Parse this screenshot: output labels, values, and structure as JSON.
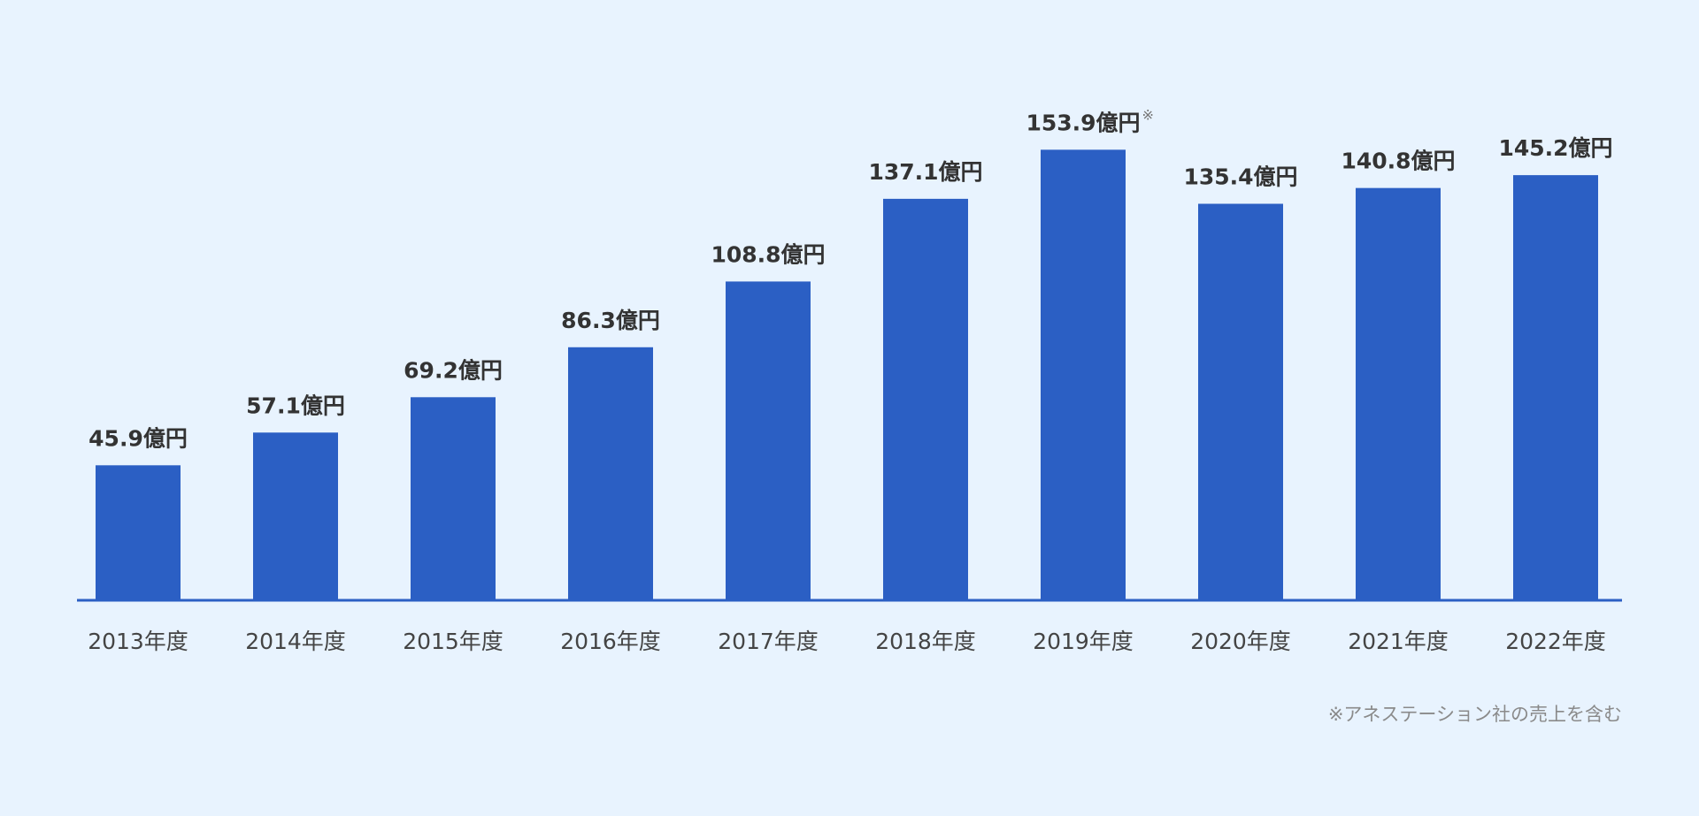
{
  "chart_data": {
    "type": "bar",
    "categories": [
      "2013年度",
      "2014年度",
      "2015年度",
      "2016年度",
      "2017年度",
      "2018年度",
      "2019年度",
      "2020年度",
      "2021年度",
      "2022年度"
    ],
    "values": [
      45.9,
      57.1,
      69.2,
      86.3,
      108.8,
      137.1,
      153.9,
      135.4,
      140.8,
      145.2
    ],
    "value_labels": [
      "45.9億円",
      "57.1億円",
      "69.2億円",
      "86.3億円",
      "108.8億円",
      "137.1億円",
      "153.9億円",
      "135.4億円",
      "140.8億円",
      "145.2億円"
    ],
    "annotations": [
      {
        "category": "2019年度",
        "marker": "※"
      }
    ],
    "footnote": "※アネステーション社の売上を含む",
    "unit": "億円",
    "title": "",
    "xlabel": "",
    "ylabel": "",
    "ylim": [
      0,
      165
    ],
    "grid": false,
    "legend": "none",
    "colors": {
      "bar": "#2b5fc4",
      "axis": "#2b5fc4",
      "value_text": "#333333",
      "tick_text": "#444444",
      "footnote_text": "#8a8a8a",
      "background": "#e8f3fe"
    }
  }
}
